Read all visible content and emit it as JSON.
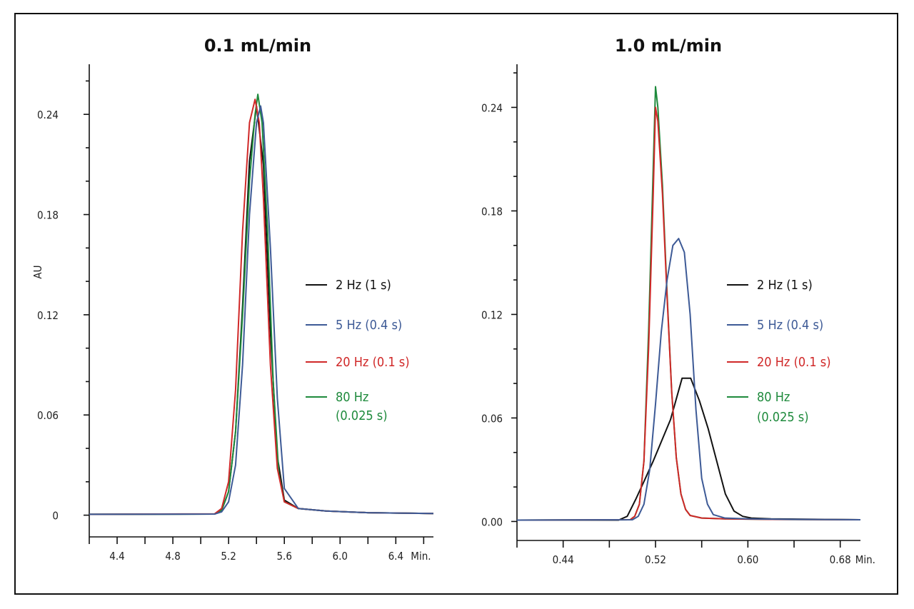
{
  "chart_data": [
    {
      "type": "line",
      "title": "0.1 mL/min",
      "ylabel": "AU",
      "xlabel": "",
      "x_unit_label": "Min.",
      "xlim": [
        4.2,
        6.67
      ],
      "ylim": [
        -0.013,
        0.27
      ],
      "x_ticks": [
        4.4,
        4.8,
        5.2,
        5.6,
        6.0,
        6.4
      ],
      "x_tick_labels": [
        "4.4",
        "4.8",
        "5.2",
        "5.6",
        "6.0",
        "6.4"
      ],
      "y_ticks": [
        0,
        0.06,
        0.12,
        0.18,
        0.24
      ],
      "y_tick_labels": [
        "0",
        "0.06",
        "0.12",
        "0.18",
        "0.24"
      ],
      "legend": {
        "placement": "right",
        "entries": [
          {
            "lines": [
              "2 Hz (1 s)"
            ],
            "color": "#111111"
          },
          {
            "lines": [
              "5 Hz (0.4 s)"
            ],
            "color": "#3d5a96"
          },
          {
            "lines": [
              "20 Hz (0.1 s)"
            ],
            "color": "#d02828"
          },
          {
            "lines": [
              "80 Hz",
              "(0.025 s)"
            ],
            "color": "#1e8a3c"
          }
        ]
      },
      "series": [
        {
          "name": "2 Hz (1 s)",
          "color": "#111111",
          "x": [
            4.2,
            5.1,
            5.15,
            5.2,
            5.25,
            5.3,
            5.35,
            5.4,
            5.45,
            5.5,
            5.55,
            5.6,
            5.7,
            5.9,
            6.2,
            6.67
          ],
          "y": [
            0.0005,
            0.0007,
            0.003,
            0.014,
            0.05,
            0.125,
            0.212,
            0.245,
            0.21,
            0.11,
            0.035,
            0.009,
            0.004,
            0.0025,
            0.0015,
            0.001
          ]
        },
        {
          "name": "5 Hz (0.4 s)",
          "color": "#3d5a96",
          "x": [
            4.2,
            5.1,
            5.15,
            5.2,
            5.25,
            5.3,
            5.35,
            5.4,
            5.43,
            5.45,
            5.5,
            5.55,
            5.6,
            5.7,
            5.9,
            6.2,
            6.67
          ],
          "y": [
            0.0005,
            0.0007,
            0.002,
            0.008,
            0.03,
            0.09,
            0.18,
            0.235,
            0.245,
            0.235,
            0.16,
            0.07,
            0.016,
            0.004,
            0.0025,
            0.0015,
            0.001
          ]
        },
        {
          "name": "20 Hz (0.1 s)",
          "color": "#d02828",
          "x": [
            4.2,
            5.1,
            5.15,
            5.2,
            5.25,
            5.3,
            5.35,
            5.39,
            5.42,
            5.45,
            5.5,
            5.55,
            5.6,
            5.7,
            5.9,
            6.2,
            6.67
          ],
          "y": [
            0.0005,
            0.0008,
            0.004,
            0.02,
            0.075,
            0.17,
            0.235,
            0.249,
            0.235,
            0.19,
            0.09,
            0.028,
            0.008,
            0.004,
            0.0025,
            0.0015,
            0.001
          ]
        },
        {
          "name": "80 Hz (0.025 s)",
          "color": "#1e8a3c",
          "x": [
            4.2,
            5.1,
            5.15,
            5.2,
            5.25,
            5.3,
            5.35,
            5.39,
            5.41,
            5.44,
            5.48,
            5.52,
            5.56,
            5.6,
            5.7,
            5.9,
            6.2,
            6.67
          ],
          "y": [
            0.0005,
            0.0007,
            0.003,
            0.014,
            0.05,
            0.12,
            0.2,
            0.24,
            0.252,
            0.235,
            0.17,
            0.08,
            0.025,
            0.008,
            0.004,
            0.0025,
            0.0015,
            0.001
          ]
        }
      ]
    },
    {
      "type": "line",
      "title": "1.0 mL/min",
      "ylabel": "",
      "xlabel": "",
      "x_unit_label": "Min.",
      "xlim": [
        0.4,
        0.6975
      ],
      "ylim": [
        -0.011,
        0.265
      ],
      "x_ticks": [
        0.44,
        0.52,
        0.6,
        0.68
      ],
      "x_tick_labels": [
        "0.44",
        "0.52",
        "0.60",
        "0.68"
      ],
      "y_ticks": [
        0,
        0.06,
        0.12,
        0.18,
        0.24
      ],
      "y_tick_labels": [
        "0.00",
        "0.06",
        "0.12",
        "0.18",
        "0.24"
      ],
      "legend": {
        "placement": "right",
        "entries": [
          {
            "lines": [
              "2 Hz (1 s)"
            ],
            "color": "#111111"
          },
          {
            "lines": [
              "5 Hz (0.4 s)"
            ],
            "color": "#3d5a96"
          },
          {
            "lines": [
              "20 Hz (0.1 s)"
            ],
            "color": "#d02828"
          },
          {
            "lines": [
              "80 Hz",
              "(0.025 s)"
            ],
            "color": "#1e8a3c"
          }
        ]
      },
      "series": [
        {
          "name": "2 Hz (1 s)",
          "color": "#111111",
          "x": [
            0.4,
            0.488,
            0.4955,
            0.503,
            0.5105,
            0.518,
            0.5255,
            0.533,
            0.538,
            0.543,
            0.5505,
            0.558,
            0.5655,
            0.573,
            0.5805,
            0.588,
            0.5955,
            0.603,
            0.62,
            0.6975
          ],
          "y": [
            0.0008,
            0.0008,
            0.003,
            0.013,
            0.024,
            0.035,
            0.047,
            0.059,
            0.071,
            0.083,
            0.083,
            0.07,
            0.054,
            0.035,
            0.016,
            0.006,
            0.003,
            0.002,
            0.0015,
            0.001
          ]
        },
        {
          "name": "5 Hz (0.4 s)",
          "color": "#3d5a96",
          "x": [
            0.4,
            0.5,
            0.505,
            0.51,
            0.515,
            0.52,
            0.525,
            0.53,
            0.535,
            0.54,
            0.545,
            0.55,
            0.555,
            0.56,
            0.565,
            0.57,
            0.58,
            0.6,
            0.64,
            0.6975
          ],
          "y": [
            0.0008,
            0.001,
            0.003,
            0.01,
            0.03,
            0.068,
            0.11,
            0.14,
            0.16,
            0.164,
            0.156,
            0.12,
            0.065,
            0.025,
            0.01,
            0.004,
            0.002,
            0.0015,
            0.0012,
            0.001
          ]
        },
        {
          "name": "20 Hz (0.1 s)",
          "color": "#d02828",
          "x": [
            0.4,
            0.498,
            0.502,
            0.506,
            0.51,
            0.514,
            0.518,
            0.52,
            0.522,
            0.526,
            0.53,
            0.534,
            0.538,
            0.542,
            0.546,
            0.55,
            0.56,
            0.58,
            0.62,
            0.6975
          ],
          "y": [
            0.0008,
            0.001,
            0.003,
            0.01,
            0.035,
            0.1,
            0.19,
            0.24,
            0.232,
            0.19,
            0.13,
            0.075,
            0.037,
            0.016,
            0.007,
            0.0035,
            0.002,
            0.0015,
            0.0012,
            0.001
          ]
        },
        {
          "name": "80 Hz (0.025 s)",
          "color": "#1e8a3c",
          "x": [
            0.4,
            0.498,
            0.502,
            0.506,
            0.51,
            0.514,
            0.518,
            0.52,
            0.522,
            0.526,
            0.53,
            0.534,
            0.538,
            0.542,
            0.546,
            0.55,
            0.56,
            0.58,
            0.62,
            0.6975
          ],
          "y": [
            0.0008,
            0.001,
            0.003,
            0.01,
            0.035,
            0.11,
            0.205,
            0.252,
            0.24,
            0.195,
            0.132,
            0.075,
            0.037,
            0.016,
            0.007,
            0.0035,
            0.002,
            0.0015,
            0.0012,
            0.001
          ]
        }
      ]
    }
  ]
}
